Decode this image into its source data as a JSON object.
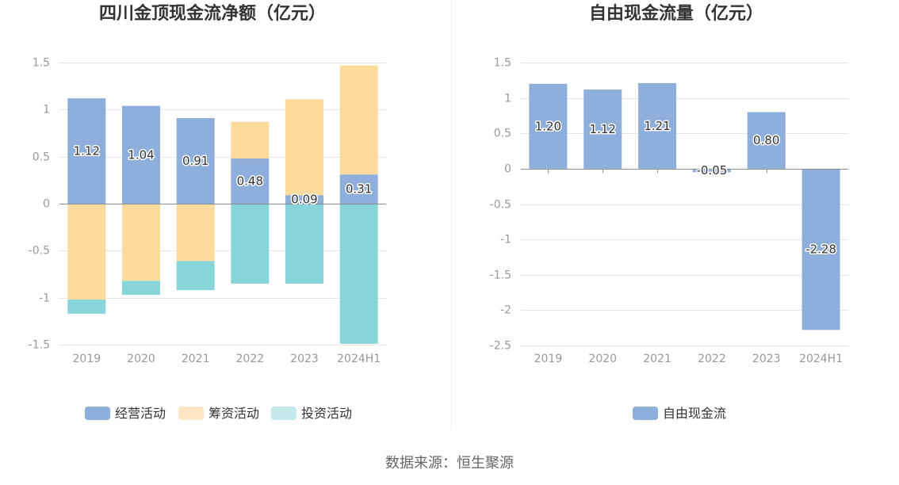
{
  "chart_data": [
    {
      "type": "bar",
      "stacked": true,
      "title": "四川金顶现金流净额（亿元）",
      "categories": [
        "2019",
        "2020",
        "2021",
        "2022",
        "2023",
        "2024H1"
      ],
      "ylim": [
        -1.5,
        1.5
      ],
      "yticks": [
        "1.5",
        "1",
        "0.5",
        "0",
        "-0.5",
        "-1",
        "-1.5"
      ],
      "grid": true,
      "legend_position": "bottom",
      "series": [
        {
          "name": "经营活动",
          "values": [
            1.12,
            1.04,
            0.91,
            0.48,
            0.09,
            0.31
          ],
          "labels": [
            "1.12",
            "1.04",
            "0.91",
            "0.48",
            "0.09",
            "0.31"
          ],
          "color": "#8eaedb",
          "legend_color": "#8eaedb"
        },
        {
          "name": "筹资活动",
          "values": [
            -1.02,
            -0.82,
            -0.61,
            0.39,
            1.02,
            1.16
          ],
          "color": "#fdda9e",
          "legend_color": "#fee6c2"
        },
        {
          "name": "投资活动",
          "values": [
            -0.15,
            -0.15,
            -0.31,
            -0.85,
            -0.85,
            -1.49
          ],
          "color": "#87d5d9",
          "legend_color": "#c3e9ec"
        }
      ]
    },
    {
      "type": "bar",
      "title": "自由现金流量（亿元）",
      "categories": [
        "2019",
        "2020",
        "2021",
        "2022",
        "2023",
        "2024H1"
      ],
      "ylim": [
        -2.5,
        1.5
      ],
      "yticks": [
        "1.5",
        "1",
        "0.5",
        "0",
        "-0.5",
        "-1",
        "-1.5",
        "-2",
        "-2.5"
      ],
      "grid": true,
      "legend_position": "bottom",
      "series": [
        {
          "name": "自由现金流",
          "values": [
            1.2,
            1.12,
            1.21,
            -0.05,
            0.8,
            -2.28
          ],
          "labels": [
            "1.20",
            "1.12",
            "1.21",
            "-0.05",
            "0.80",
            "-2.28"
          ],
          "color": "#8eaedb",
          "legend_color": "#8eaedb"
        }
      ]
    }
  ],
  "footer": {
    "source": "数据来源：恒生聚源"
  }
}
